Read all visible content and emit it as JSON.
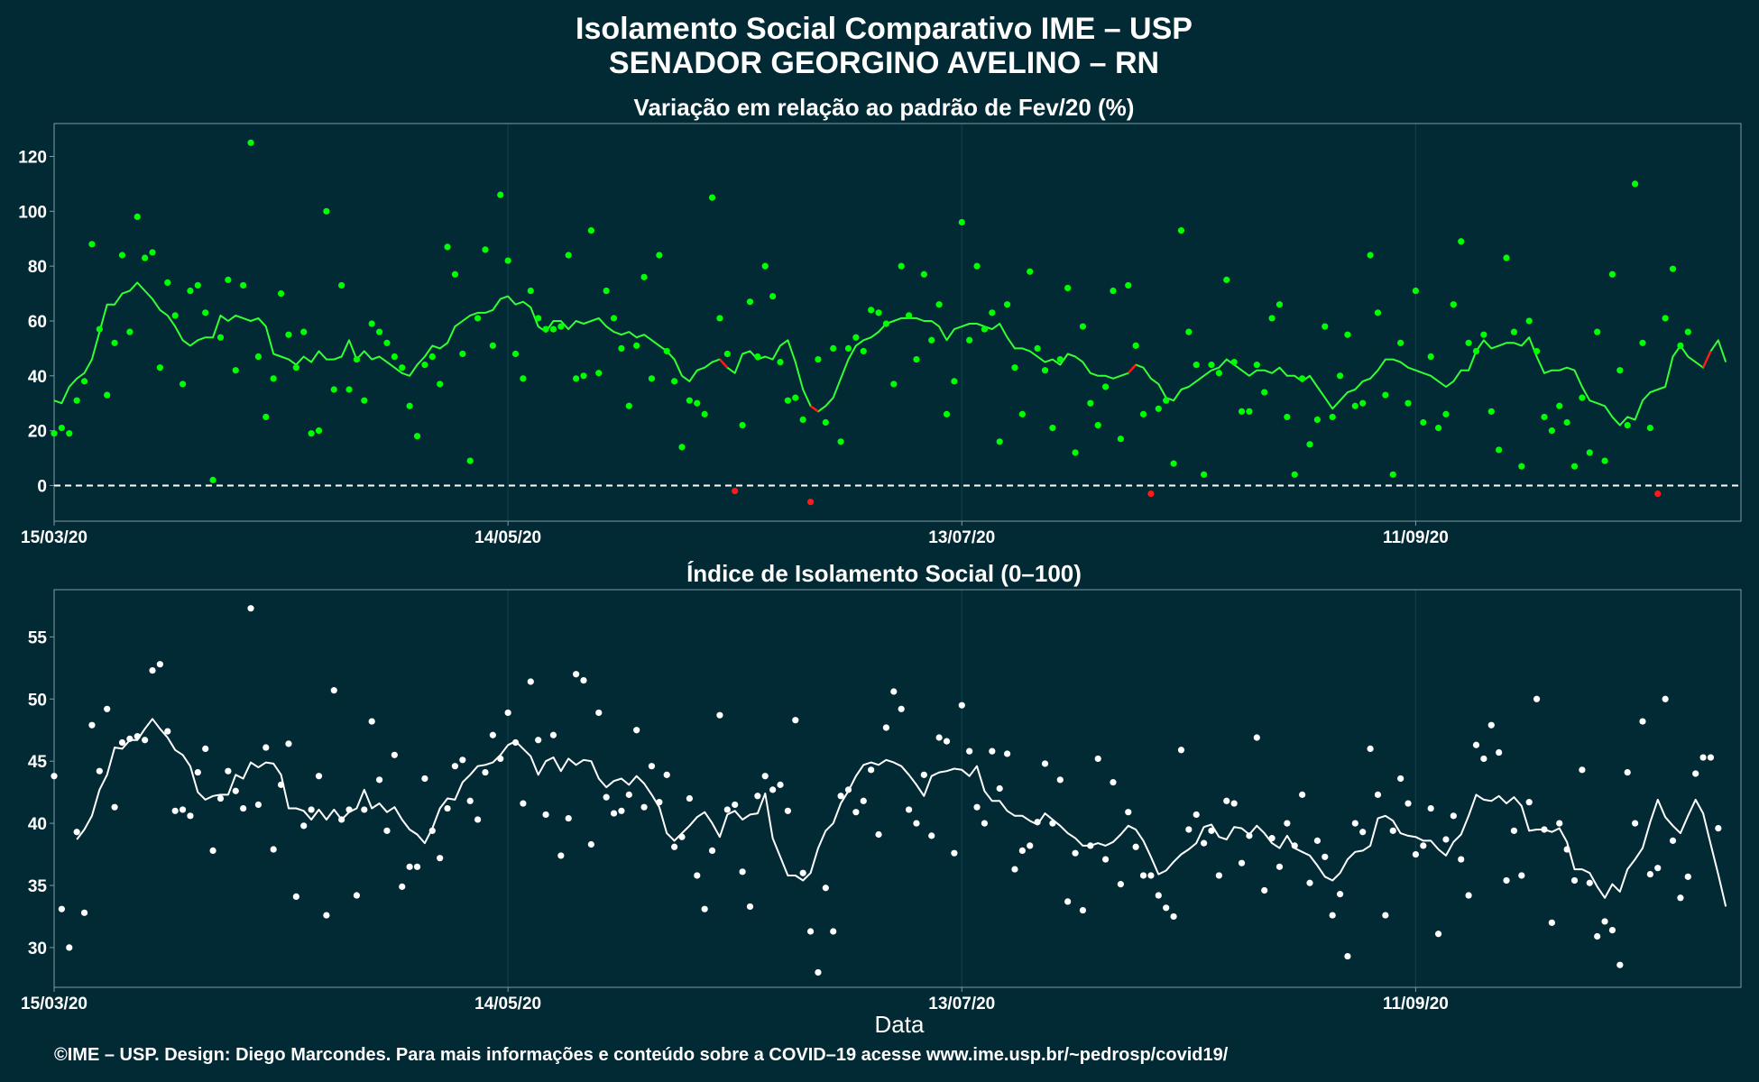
{
  "header": {
    "title_line1": "Isolamento Social Comparativo IME – USP",
    "title_line2": "SENADOR GEORGINO AVELINO – RN"
  },
  "footer": {
    "credit": "©IME – USP. Design: Diego Marcondes. Para mais informações e conteúdo sobre a COVID–19 acesse www.ime.usp.br/~pedrosp/covid19/"
  },
  "colors": {
    "background": "#022a35",
    "top_points": "#00ff00",
    "top_line": "#33ff33",
    "negative": "#ff1a1a",
    "bottom_points": "#ffffff",
    "bottom_line": "#ffffff"
  },
  "chart_data": [
    {
      "type": "scatter",
      "title": "Variação em relação ao padrão de Fev/20 (%)",
      "xlabel": "",
      "ylabel": "",
      "x_start": "2020-03-15",
      "x_ticks": [
        {
          "label": "15/03/20",
          "day": 0
        },
        {
          "label": "14/05/20",
          "day": 60
        },
        {
          "label": "13/07/20",
          "day": 120
        },
        {
          "label": "11/09/20",
          "day": 180
        }
      ],
      "y_ticks": [
        0,
        20,
        40,
        60,
        80,
        100,
        120
      ],
      "xlim": [
        0,
        223
      ],
      "ylim": [
        -13,
        132
      ],
      "reference_line": 0,
      "grid": "vertical",
      "series": [
        {
          "kind": "daily points",
          "values": [
            19,
            21,
            19,
            31,
            38,
            88,
            57,
            33,
            52,
            84,
            56,
            98,
            83,
            85,
            43,
            74,
            62,
            37,
            71,
            73,
            63,
            2,
            54,
            75,
            42,
            73,
            125,
            47,
            25,
            39,
            70,
            55,
            43,
            56,
            19,
            20,
            100,
            35,
            73,
            35,
            46,
            31,
            59,
            56,
            52,
            47,
            43,
            29,
            18,
            44,
            47,
            37,
            87,
            77,
            48,
            9,
            61,
            86,
            51,
            106,
            82,
            48,
            39,
            71,
            61,
            57,
            57,
            58,
            84,
            39,
            40,
            93,
            41,
            71,
            61,
            50,
            29,
            51,
            76,
            39,
            84,
            49,
            38,
            14,
            31,
            30,
            26,
            105,
            61,
            48,
            -2,
            22,
            67,
            47,
            80,
            69,
            45,
            31,
            32,
            24,
            -6,
            46,
            23,
            50,
            16,
            50,
            54,
            49,
            64,
            63,
            59,
            37,
            80,
            62,
            46,
            77,
            53,
            66,
            26,
            38,
            96,
            53,
            80,
            57,
            63,
            16,
            66,
            43,
            26,
            78,
            50,
            42,
            21,
            46,
            72,
            12,
            58,
            30,
            22,
            36,
            71,
            17,
            73,
            51,
            26,
            -3,
            28,
            31,
            8,
            93,
            56,
            44,
            4,
            44,
            41,
            75,
            45,
            27,
            27,
            44,
            34,
            61,
            66,
            25,
            4,
            39,
            15,
            24,
            58,
            25,
            40,
            55,
            29,
            30,
            84,
            63,
            33,
            4,
            52,
            30,
            71,
            23,
            47,
            21,
            26,
            66,
            89,
            52,
            49,
            55,
            27,
            13,
            83,
            56,
            7,
            60,
            49,
            25,
            20,
            29,
            23,
            7,
            32,
            12,
            56,
            9,
            77,
            42,
            22,
            110,
            52,
            21,
            -3,
            61,
            79,
            51,
            56
          ]
        },
        {
          "kind": "moving average",
          "values": [
            31,
            30,
            36,
            39,
            41,
            46,
            56,
            66,
            66,
            70,
            71,
            74,
            71,
            68,
            64,
            62,
            58,
            53,
            51,
            53,
            54,
            54,
            62,
            60,
            62,
            61,
            60,
            61,
            58,
            48,
            47,
            46,
            44,
            47,
            45,
            49,
            46,
            46,
            47,
            53,
            46,
            49,
            46,
            47,
            45,
            43,
            41,
            40,
            44,
            47,
            51,
            50,
            52,
            58,
            60,
            62,
            63,
            63,
            64,
            68,
            69,
            66,
            67,
            65,
            58,
            56,
            60,
            60,
            57,
            60,
            59,
            60,
            61,
            58,
            56,
            55,
            56,
            54,
            55,
            53,
            51,
            49,
            46,
            40,
            38,
            42,
            43,
            45,
            46,
            43,
            41,
            48,
            49,
            46,
            47,
            46,
            51,
            53,
            45,
            35,
            29,
            27,
            29,
            32,
            39,
            46,
            51,
            53,
            54,
            56,
            59,
            60,
            61,
            61,
            61,
            60,
            60,
            58,
            53,
            57,
            58,
            59,
            59,
            58,
            57,
            59,
            54,
            50,
            50,
            49,
            47,
            45,
            46,
            44,
            48,
            47,
            45,
            41,
            40,
            40,
            39,
            40,
            41,
            44,
            43,
            39,
            37,
            32,
            31,
            35,
            36,
            38,
            40,
            42,
            43,
            46,
            44,
            42,
            40,
            42,
            42,
            41,
            43,
            40,
            40,
            38,
            40,
            36,
            32,
            28,
            31,
            34,
            35,
            38,
            39,
            42,
            46,
            46,
            45,
            43,
            42,
            41,
            40,
            38,
            36,
            38,
            42,
            42,
            49,
            53,
            50,
            51,
            52,
            52,
            51,
            54,
            47,
            41,
            42,
            42,
            43,
            42,
            36,
            31,
            30,
            29,
            25,
            22,
            25,
            24,
            31,
            34,
            35,
            36,
            47,
            51,
            47,
            45,
            43,
            49,
            53,
            45
          ],
          "negative_segments_days": [
            89,
            101,
            143,
            219
          ]
        }
      ]
    },
    {
      "type": "scatter",
      "title": "Índice de Isolamento Social (0–100)",
      "xlabel": "Data",
      "ylabel": "",
      "x_start": "2020-03-15",
      "x_ticks": [
        {
          "label": "15/03/20",
          "day": 0
        },
        {
          "label": "14/05/20",
          "day": 60
        },
        {
          "label": "13/07/20",
          "day": 120
        },
        {
          "label": "11/09/20",
          "day": 180
        }
      ],
      "y_ticks": [
        30,
        35,
        40,
        45,
        50,
        55
      ],
      "xlim": [
        0,
        223
      ],
      "ylim": [
        26.8,
        58.8
      ],
      "grid": "vertical",
      "series": [
        {
          "kind": "daily points",
          "values": [
            43.8,
            33.1,
            30.0,
            39.3,
            32.8,
            47.9,
            44.2,
            49.2,
            41.3,
            46.5,
            46.8,
            47.0,
            46.7,
            52.3,
            52.8,
            47.4,
            41.0,
            41.1,
            40.6,
            44.1,
            46.0,
            37.8,
            42.0,
            44.2,
            42.6,
            41.2,
            57.3,
            41.5,
            46.1,
            37.9,
            43.1,
            46.4,
            34.1,
            39.8,
            41.1,
            43.8,
            32.6,
            50.7,
            40.3,
            41.1,
            34.2,
            41.1,
            48.2,
            43.5,
            39.4,
            45.5,
            34.9,
            36.5,
            36.5,
            43.6,
            39.4,
            37.2,
            41.2,
            44.6,
            45.1,
            41.8,
            40.3,
            44.1,
            47.1,
            45.2,
            48.9,
            46.5,
            41.6,
            51.4,
            46.7,
            40.7,
            47.1,
            37.4,
            40.4,
            52.0,
            51.5,
            38.3,
            48.9,
            42.1,
            40.8,
            41.0,
            42.3,
            47.5,
            41.3,
            44.6,
            41.7,
            43.9,
            38.1,
            38.9,
            42.0,
            35.8,
            33.1,
            37.8,
            48.7,
            41.1,
            41.5,
            36.1,
            33.3,
            42.2,
            43.8,
            42.7,
            43.1,
            41.0,
            48.3,
            36.0,
            31.3,
            28.0,
            34.8,
            31.3,
            42.2,
            42.7,
            40.9,
            41.8,
            44.3,
            39.1,
            47.7,
            50.6,
            49.2,
            41.1,
            40.0,
            43.9,
            39.0,
            46.9,
            46.6,
            37.6,
            49.5,
            45.8,
            41.3,
            40.0,
            45.8,
            42.8,
            45.6,
            36.3,
            37.8,
            38.2,
            40.1,
            44.8,
            40.0,
            43.5,
            33.7,
            37.6,
            33.0,
            38.2,
            45.2,
            37.1,
            43.3,
            35.1,
            40.9,
            38.1,
            35.8,
            35.8,
            34.2,
            33.2,
            32.5,
            45.9,
            39.5,
            40.7,
            38.4,
            39.4,
            35.8,
            41.8,
            41.6,
            36.8,
            39.0,
            46.9,
            34.6,
            38.8,
            36.5,
            40.0,
            38.2,
            42.3,
            35.2,
            38.6,
            37.3,
            32.6,
            34.3,
            29.3,
            40.0,
            39.3,
            46.0,
            42.3,
            32.6,
            39.4,
            43.6,
            41.6,
            37.5,
            38.2,
            41.2,
            31.1,
            38.7,
            40.6,
            37.1,
            34.2,
            46.3,
            45.2,
            47.9,
            45.7,
            35.4,
            39.4,
            35.8,
            41.7,
            50.0,
            39.5,
            32.0,
            40.0,
            37.9,
            35.4,
            44.3,
            35.2,
            30.9,
            32.1,
            31.4,
            28.6,
            44.1,
            40.0,
            48.2,
            35.9,
            36.4,
            50.0,
            38.6,
            34.0,
            35.7,
            44.0,
            45.3,
            45.3,
            39.6
          ]
        },
        {
          "kind": "moving average",
          "start_day": 3,
          "values": [
            38.7,
            39.5,
            40.6,
            42.7,
            43.9,
            46.1,
            46.0,
            46.7,
            46.7,
            47.6,
            48.4,
            47.6,
            46.9,
            45.9,
            45.5,
            44.6,
            42.5,
            41.9,
            42.2,
            42.3,
            42.3,
            43.9,
            43.6,
            44.9,
            44.5,
            44.9,
            44.8,
            43.9,
            41.2,
            41.2,
            41.0,
            40.3,
            41.1,
            40.3,
            41.1,
            40.3,
            40.9,
            41.2,
            42.7,
            41.2,
            41.6,
            40.9,
            41.3,
            40.3,
            39.5,
            39.1,
            38.4,
            39.6,
            41.2,
            42.0,
            41.9,
            43.3,
            43.9,
            44.6,
            44.7,
            44.9,
            45.5,
            46.3,
            46.6,
            46.0,
            45.4,
            43.9,
            45.0,
            45.3,
            44.2,
            45.2,
            44.7,
            45.1,
            45.0,
            43.6,
            42.9,
            43.4,
            43.6,
            43.1,
            43.8,
            43.2,
            42.3,
            41.3,
            39.2,
            38.6,
            39.2,
            39.8,
            40.5,
            40.9,
            40.0,
            38.9,
            40.7,
            41.0,
            40.3,
            40.7,
            40.8,
            42.4,
            38.8,
            37.3,
            35.8,
            35.8,
            35.4,
            36.0,
            38.0,
            39.4,
            40.0,
            41.6,
            42.6,
            43.8,
            44.7,
            44.9,
            44.7,
            45.1,
            44.9,
            44.6,
            43.9,
            43.1,
            42.2,
            43.8,
            44.1,
            44.2,
            44.4,
            44.3,
            43.8,
            44.6,
            42.6,
            41.8,
            41.8,
            41.0,
            40.6,
            40.6,
            40.2,
            39.9,
            40.8,
            40.3,
            39.8,
            39.2,
            38.8,
            38.2,
            38.2,
            38.4,
            38.2,
            38.5,
            39.1,
            39.8,
            39.5,
            38.6,
            37.3,
            35.9,
            36.2,
            36.9,
            37.5,
            37.9,
            38.4,
            39.7,
            39.9,
            38.9,
            38.7,
            39.7,
            39.6,
            39.1,
            39.8,
            39.2,
            38.4,
            38.0,
            39.0,
            38.0,
            37.7,
            37.4,
            36.6,
            35.7,
            35.4,
            36.0,
            37.1,
            37.7,
            37.8,
            38.2,
            40.4,
            40.6,
            40.2,
            39.2,
            39.0,
            38.9,
            38.6,
            38.6,
            37.9,
            37.4,
            38.5,
            39.1,
            40.6,
            42.3,
            41.9,
            41.8,
            42.2,
            41.6,
            42.1,
            41.4,
            39.4,
            39.5,
            39.5,
            39.3,
            39.6,
            38.5,
            36.3,
            36.3,
            36.0,
            34.9,
            34.0,
            35.1,
            34.5,
            36.3,
            37.1,
            38.0,
            40.1,
            41.9,
            40.5,
            39.8,
            39.2,
            40.6,
            41.9,
            40.8,
            38.3,
            35.9,
            33.3
          ]
        }
      ]
    }
  ]
}
